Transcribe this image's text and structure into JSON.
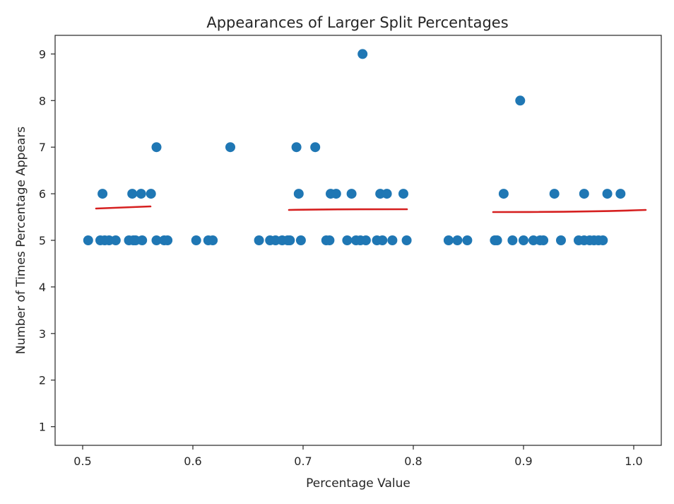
{
  "chart_data": {
    "type": "scatter",
    "title": "Appearances of Larger Split Percentages",
    "xlabel": "Percentage Value",
    "ylabel": "Number of Times Percentage Appears",
    "xlim": [
      0.475,
      1.025
    ],
    "ylim": [
      0.6,
      9.4
    ],
    "xticks": [
      0.5,
      0.6,
      0.7,
      0.8,
      0.9,
      1.0
    ],
    "xtick_labels": [
      "0.5",
      "0.6",
      "0.7",
      "0.8",
      "0.9",
      "1.0"
    ],
    "yticks": [
      1,
      2,
      3,
      4,
      5,
      6,
      7,
      8,
      9
    ],
    "ytick_labels": [
      "1",
      "2",
      "3",
      "4",
      "5",
      "6",
      "7",
      "8",
      "9"
    ],
    "grid": false,
    "marker_color": "#1f77b4",
    "annotation_color": "#d62020",
    "series": [
      {
        "points": [
          {
            "x": 0.754,
            "y": 9
          },
          {
            "x": 0.897,
            "y": 8
          },
          {
            "x": 0.567,
            "y": 7
          },
          {
            "x": 0.634,
            "y": 7
          },
          {
            "x": 0.694,
            "y": 7
          },
          {
            "x": 0.711,
            "y": 7
          },
          {
            "x": 0.518,
            "y": 6
          },
          {
            "x": 0.545,
            "y": 6
          },
          {
            "x": 0.553,
            "y": 6
          },
          {
            "x": 0.562,
            "y": 6
          },
          {
            "x": 0.696,
            "y": 6
          },
          {
            "x": 0.725,
            "y": 6
          },
          {
            "x": 0.73,
            "y": 6
          },
          {
            "x": 0.744,
            "y": 6
          },
          {
            "x": 0.77,
            "y": 6
          },
          {
            "x": 0.776,
            "y": 6
          },
          {
            "x": 0.791,
            "y": 6
          },
          {
            "x": 0.882,
            "y": 6
          },
          {
            "x": 0.928,
            "y": 6
          },
          {
            "x": 0.955,
            "y": 6
          },
          {
            "x": 0.976,
            "y": 6
          },
          {
            "x": 0.988,
            "y": 6
          },
          {
            "x": 0.505,
            "y": 5
          },
          {
            "x": 0.516,
            "y": 5
          },
          {
            "x": 0.52,
            "y": 5
          },
          {
            "x": 0.524,
            "y": 5
          },
          {
            "x": 0.53,
            "y": 5
          },
          {
            "x": 0.542,
            "y": 5
          },
          {
            "x": 0.546,
            "y": 5
          },
          {
            "x": 0.548,
            "y": 5
          },
          {
            "x": 0.554,
            "y": 5
          },
          {
            "x": 0.567,
            "y": 5
          },
          {
            "x": 0.574,
            "y": 5
          },
          {
            "x": 0.577,
            "y": 5
          },
          {
            "x": 0.603,
            "y": 5
          },
          {
            "x": 0.614,
            "y": 5
          },
          {
            "x": 0.618,
            "y": 5
          },
          {
            "x": 0.66,
            "y": 5
          },
          {
            "x": 0.67,
            "y": 5
          },
          {
            "x": 0.675,
            "y": 5
          },
          {
            "x": 0.681,
            "y": 5
          },
          {
            "x": 0.686,
            "y": 5
          },
          {
            "x": 0.688,
            "y": 5
          },
          {
            "x": 0.698,
            "y": 5
          },
          {
            "x": 0.721,
            "y": 5
          },
          {
            "x": 0.724,
            "y": 5
          },
          {
            "x": 0.74,
            "y": 5
          },
          {
            "x": 0.748,
            "y": 5
          },
          {
            "x": 0.752,
            "y": 5
          },
          {
            "x": 0.757,
            "y": 5
          },
          {
            "x": 0.767,
            "y": 5
          },
          {
            "x": 0.772,
            "y": 5
          },
          {
            "x": 0.781,
            "y": 5
          },
          {
            "x": 0.794,
            "y": 5
          },
          {
            "x": 0.832,
            "y": 5
          },
          {
            "x": 0.84,
            "y": 5
          },
          {
            "x": 0.849,
            "y": 5
          },
          {
            "x": 0.874,
            "y": 5
          },
          {
            "x": 0.876,
            "y": 5
          },
          {
            "x": 0.89,
            "y": 5
          },
          {
            "x": 0.9,
            "y": 5
          },
          {
            "x": 0.909,
            "y": 5
          },
          {
            "x": 0.915,
            "y": 5
          },
          {
            "x": 0.918,
            "y": 5
          },
          {
            "x": 0.934,
            "y": 5
          },
          {
            "x": 0.95,
            "y": 5
          },
          {
            "x": 0.955,
            "y": 5
          },
          {
            "x": 0.96,
            "y": 5
          },
          {
            "x": 0.964,
            "y": 5
          },
          {
            "x": 0.968,
            "y": 5
          },
          {
            "x": 0.972,
            "y": 5
          }
        ]
      }
    ]
  }
}
